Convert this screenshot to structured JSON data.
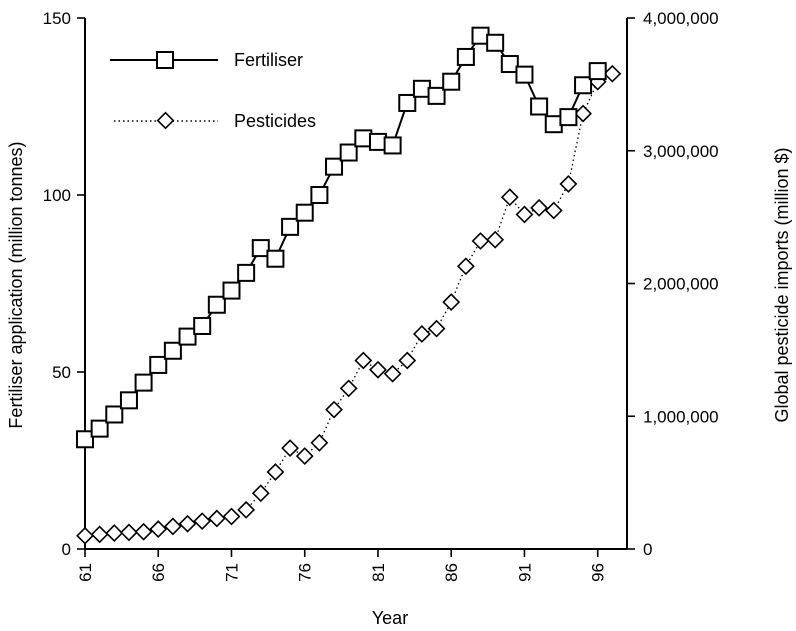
{
  "chart_data": {
    "type": "line",
    "xlabel": "Year",
    "ylabel_left": "Fertiliser application (million tonnes)",
    "ylabel_right": "Global pesticide imports (million $)",
    "x_ticks": [
      "61",
      "66",
      "71",
      "76",
      "81",
      "86",
      "91",
      "96"
    ],
    "xlim": [
      61,
      98
    ],
    "ylim_left": [
      0,
      150
    ],
    "ylim_right": [
      0,
      4000000
    ],
    "y_ticks_left": [
      "0",
      "50",
      "100",
      "150"
    ],
    "y_ticks_right": [
      "0",
      "1,000,000",
      "2,000,000",
      "3,000,000",
      "4,000,000"
    ],
    "legend": {
      "position": "top-left"
    },
    "grid": false,
    "series": [
      {
        "name": "Fertiliser",
        "axis": "left",
        "style": "solid-line-square-markers",
        "x": [
          61,
          62,
          63,
          64,
          65,
          66,
          67,
          68,
          69,
          70,
          71,
          72,
          73,
          74,
          75,
          76,
          77,
          78,
          79,
          80,
          81,
          82,
          83,
          84,
          85,
          86,
          87,
          88,
          89,
          90,
          91,
          92,
          93,
          94,
          95,
          96,
          97
        ],
        "y": [
          31,
          34,
          38,
          42,
          47,
          52,
          56,
          60,
          63,
          69,
          73,
          78,
          85,
          82,
          91,
          95,
          100,
          108,
          112,
          116,
          115,
          114,
          126,
          130,
          128,
          132,
          139,
          145,
          143,
          137,
          134,
          125,
          120,
          122,
          131,
          135,
          null
        ]
      },
      {
        "name": "Pesticides",
        "axis": "right",
        "style": "dotted-line-diamond-markers",
        "x": [
          61,
          62,
          63,
          64,
          65,
          66,
          67,
          68,
          69,
          70,
          71,
          72,
          73,
          74,
          75,
          76,
          77,
          78,
          79,
          80,
          81,
          82,
          83,
          84,
          85,
          86,
          87,
          88,
          89,
          90,
          91,
          92,
          93,
          94,
          95,
          96,
          97
        ],
        "y": [
          100000,
          110000,
          120000,
          125000,
          130000,
          150000,
          170000,
          190000,
          210000,
          230000,
          245000,
          295000,
          420000,
          580000,
          760000,
          700000,
          800000,
          1050000,
          1210000,
          1420000,
          1350000,
          1320000,
          1420000,
          1620000,
          1660000,
          1860000,
          2130000,
          2320000,
          2330000,
          2650000,
          2520000,
          2570000,
          2550000,
          2750000,
          3280000,
          3520000,
          3580000
        ]
      }
    ]
  }
}
